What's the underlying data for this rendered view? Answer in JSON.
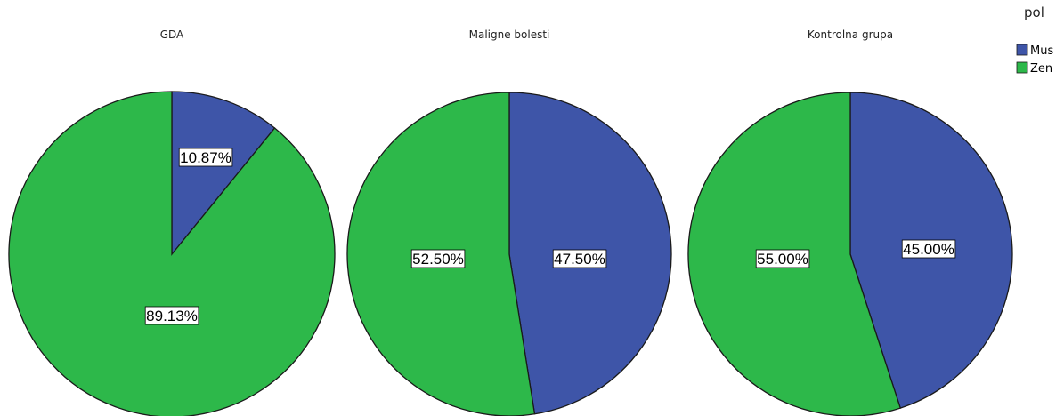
{
  "chart_data": [
    {
      "type": "pie",
      "title": "GDA",
      "slices": [
        {
          "category": "Mus",
          "value": 10.87,
          "label": "10.87%"
        },
        {
          "category": "Zen",
          "value": 89.13,
          "label": "89.13%"
        }
      ]
    },
    {
      "type": "pie",
      "title": "Maligne bolesti",
      "slices": [
        {
          "category": "Mus",
          "value": 47.5,
          "label": "47.50%"
        },
        {
          "category": "Zen",
          "value": 52.5,
          "label": "52.50%"
        }
      ]
    },
    {
      "type": "pie",
      "title": "Kontrolna grupa",
      "slices": [
        {
          "category": "Mus",
          "value": 45.0,
          "label": "45.00%"
        },
        {
          "category": "Zen",
          "value": 55.0,
          "label": "55.00%"
        }
      ]
    }
  ],
  "legend": {
    "title": "pol",
    "placement": "top-right",
    "items": [
      {
        "label": "Mus",
        "color": "#3e55a8"
      },
      {
        "label": "Zen",
        "color": "#2db84a"
      }
    ]
  },
  "colors": {
    "Mus": "#3e55a8",
    "Zen": "#2db84a"
  }
}
